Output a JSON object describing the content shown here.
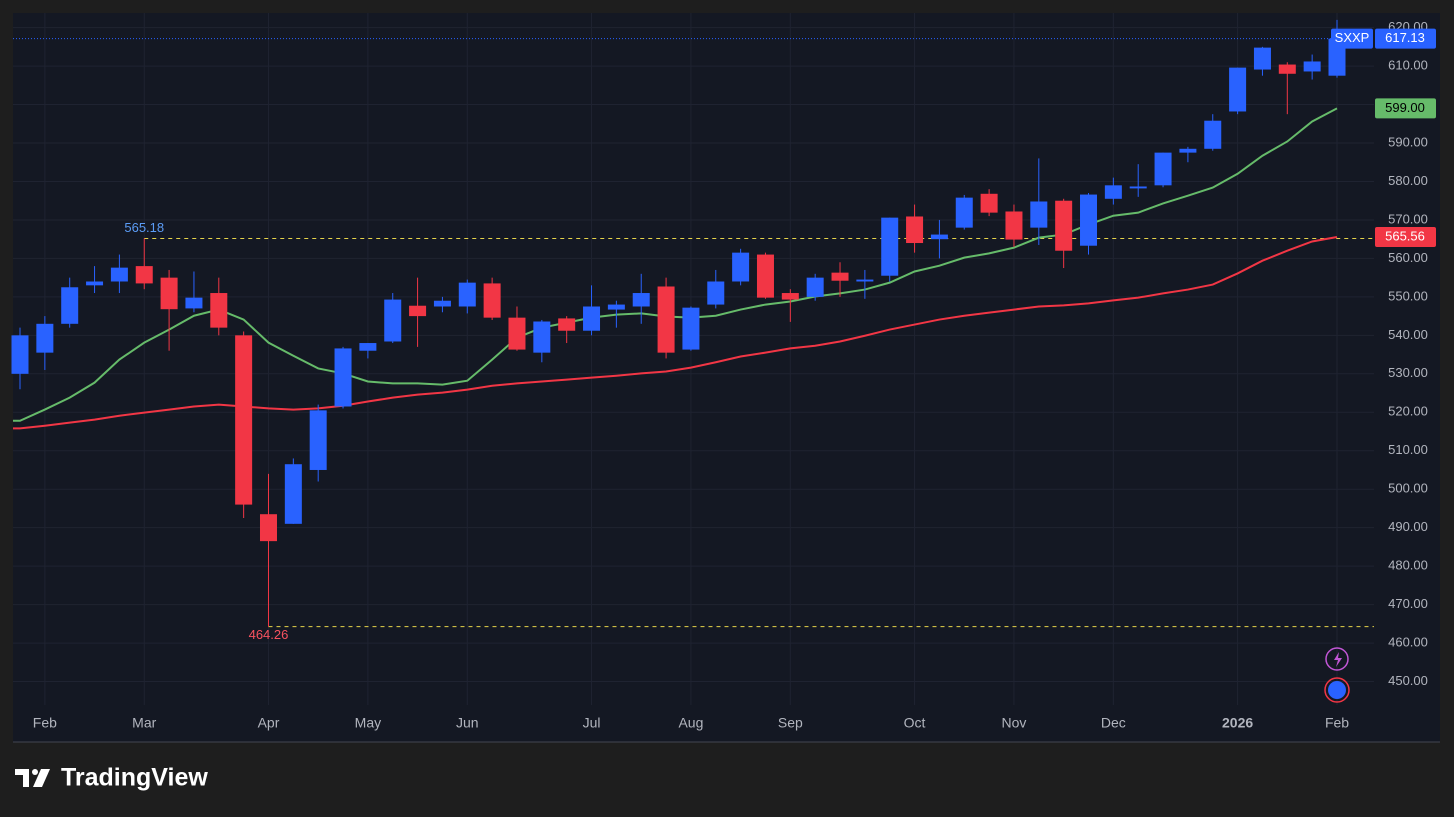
{
  "chart_data": {
    "type": "candlestick",
    "categories": [
      null,
      "Feb",
      null,
      null,
      null,
      "Mar",
      null,
      null,
      null,
      null,
      "Apr",
      null,
      null,
      null,
      "May",
      null,
      null,
      null,
      "Jun",
      null,
      null,
      null,
      null,
      "Jul",
      null,
      null,
      null,
      "Aug",
      null,
      null,
      null,
      "Sep",
      null,
      null,
      null,
      null,
      "Oct",
      null,
      null,
      null,
      "Nov",
      null,
      null,
      null,
      "Dec",
      null,
      null,
      null,
      null,
      "2026",
      null,
      null,
      null,
      "Feb"
    ],
    "series": [
      {
        "name": "SXXP",
        "up_color": "#2962ff",
        "down_color": "#f23645",
        "open": [
          530,
          535.5,
          543,
          553,
          554,
          558,
          555,
          547,
          551,
          540,
          493.5,
          491,
          505,
          521.5,
          536,
          538.4,
          547.7,
          547.5,
          547.5,
          553.5,
          544.6,
          535.5,
          544.4,
          541.2,
          546.7,
          547.5,
          552.7,
          536.3,
          548,
          554,
          561,
          551,
          550,
          556.3,
          554,
          555.5,
          570.9,
          565,
          568,
          576.8,
          572.2,
          568,
          575,
          563.3,
          575.5,
          578.2,
          579,
          587.5,
          588.5,
          598.2,
          609.1,
          610.4,
          608.6,
          607.5
        ],
        "high": [
          542,
          545,
          555,
          558,
          561,
          565.18,
          557,
          556.6,
          555,
          541,
          504,
          508,
          522,
          537,
          538,
          551,
          555,
          550,
          554.5,
          555,
          547.5,
          544,
          545,
          553,
          549,
          556,
          555,
          547.5,
          557,
          562.5,
          561.5,
          552,
          556,
          559,
          557,
          570.6,
          574,
          570,
          576.5,
          578,
          574,
          586,
          575.5,
          577,
          581,
          584.5,
          587.5,
          589,
          597.5,
          609.6,
          615,
          611,
          613,
          622
        ],
        "low": [
          526,
          531,
          542,
          551,
          551,
          552,
          536,
          546,
          540,
          492.5,
          464.26,
          491,
          502,
          521,
          534,
          538,
          537,
          546,
          545.7,
          544,
          536,
          533,
          538,
          540,
          542,
          543,
          534,
          536,
          547,
          553,
          549.5,
          543.5,
          549,
          550,
          549.5,
          554,
          561.5,
          560,
          567.5,
          571,
          563,
          563.5,
          557.5,
          561,
          574,
          576,
          578.5,
          585,
          588,
          597.5,
          607.5,
          597.5,
          606.5,
          607
        ],
        "close": [
          540,
          543,
          552.5,
          554,
          557.6,
          553.5,
          546.8,
          549.8,
          542,
          496,
          486.5,
          506.5,
          520.5,
          536.6,
          538,
          549.3,
          545,
          549,
          553.7,
          544.6,
          536.3,
          543.6,
          541.2,
          547.5,
          548,
          551,
          535.5,
          547.2,
          554,
          561.5,
          549.8,
          549.3,
          555,
          554.2,
          554.5,
          570.6,
          564,
          566.2,
          575.8,
          571.9,
          564.9,
          574.8,
          562,
          576.6,
          579,
          578.7,
          587.5,
          588.5,
          595.8,
          609.6,
          614.8,
          608,
          611.2,
          617.13
        ],
        "last_label": "617.13"
      }
    ],
    "lines": [
      {
        "color": "#66bb6a",
        "last_label": "599.00",
        "values": [
          517.8,
          520.7,
          523.8,
          527.7,
          533.7,
          538.1,
          541.5,
          545.1,
          546.7,
          544.1,
          538.1,
          534.7,
          531.4,
          530.1,
          528,
          527.5,
          527.5,
          527.2,
          528.2,
          533.7,
          539.4,
          542,
          543.3,
          544.6,
          545.4,
          545.7,
          544.9,
          544.6,
          545.1,
          546.7,
          548,
          548.8,
          550.1,
          550.9,
          551.9,
          553.7,
          556.6,
          558.1,
          560.2,
          561.3,
          562.8,
          565.4,
          566.2,
          568.8,
          571.1,
          571.9,
          574.3,
          576.3,
          578.4,
          582,
          586.7,
          590.4,
          595.6,
          599
        ]
      },
      {
        "color": "#f23645",
        "last_label": "565.56",
        "values": [
          515.8,
          516.5,
          517.3,
          518.1,
          519.1,
          519.9,
          520.7,
          521.5,
          522,
          521.5,
          521,
          520.7,
          521,
          521.7,
          522.8,
          523.8,
          524.6,
          525.1,
          525.9,
          526.9,
          527.5,
          528,
          528.5,
          529,
          529.5,
          530.1,
          530.6,
          531.6,
          533,
          534.5,
          535.5,
          536.6,
          537.3,
          538.4,
          539.9,
          541.5,
          542.8,
          544.1,
          545.1,
          545.9,
          546.7,
          547.5,
          547.8,
          548.3,
          549.1,
          549.8,
          550.9,
          551.9,
          553.2,
          556.1,
          559.4,
          562,
          564.4,
          565.56
        ]
      }
    ],
    "annotations": [
      {
        "value": 565.18,
        "label": "565.18",
        "color": "#5b9cf6"
      },
      {
        "value": 464.26,
        "label": "464.26",
        "color": "#f7525f"
      }
    ],
    "ylim": [
      443.9,
      623.8
    ],
    "yticks": [
      {
        "value": 450,
        "label": "450.00"
      },
      {
        "value": 460,
        "label": "460.00"
      },
      {
        "value": 470,
        "label": "470.00"
      },
      {
        "value": 480,
        "label": "480.00"
      },
      {
        "value": 490,
        "label": "490.00"
      },
      {
        "value": 500,
        "label": "500.00"
      },
      {
        "value": 510,
        "label": "510.00"
      },
      {
        "value": 520,
        "label": "520.00"
      },
      {
        "value": 530,
        "label": "530.00"
      },
      {
        "value": 540,
        "label": "540.00"
      },
      {
        "value": 550,
        "label": "550.00"
      },
      {
        "value": 560,
        "label": "560.00"
      },
      {
        "value": 570,
        "label": "570.00"
      },
      {
        "value": 580,
        "label": "580.00"
      },
      {
        "value": 590,
        "label": "590.00"
      },
      {
        "value": 600,
        "label": "600.00"
      },
      {
        "value": 610,
        "label": "610.00"
      },
      {
        "value": 620,
        "label": "620.00"
      }
    ],
    "grid": true
  },
  "brand": "TradingView"
}
